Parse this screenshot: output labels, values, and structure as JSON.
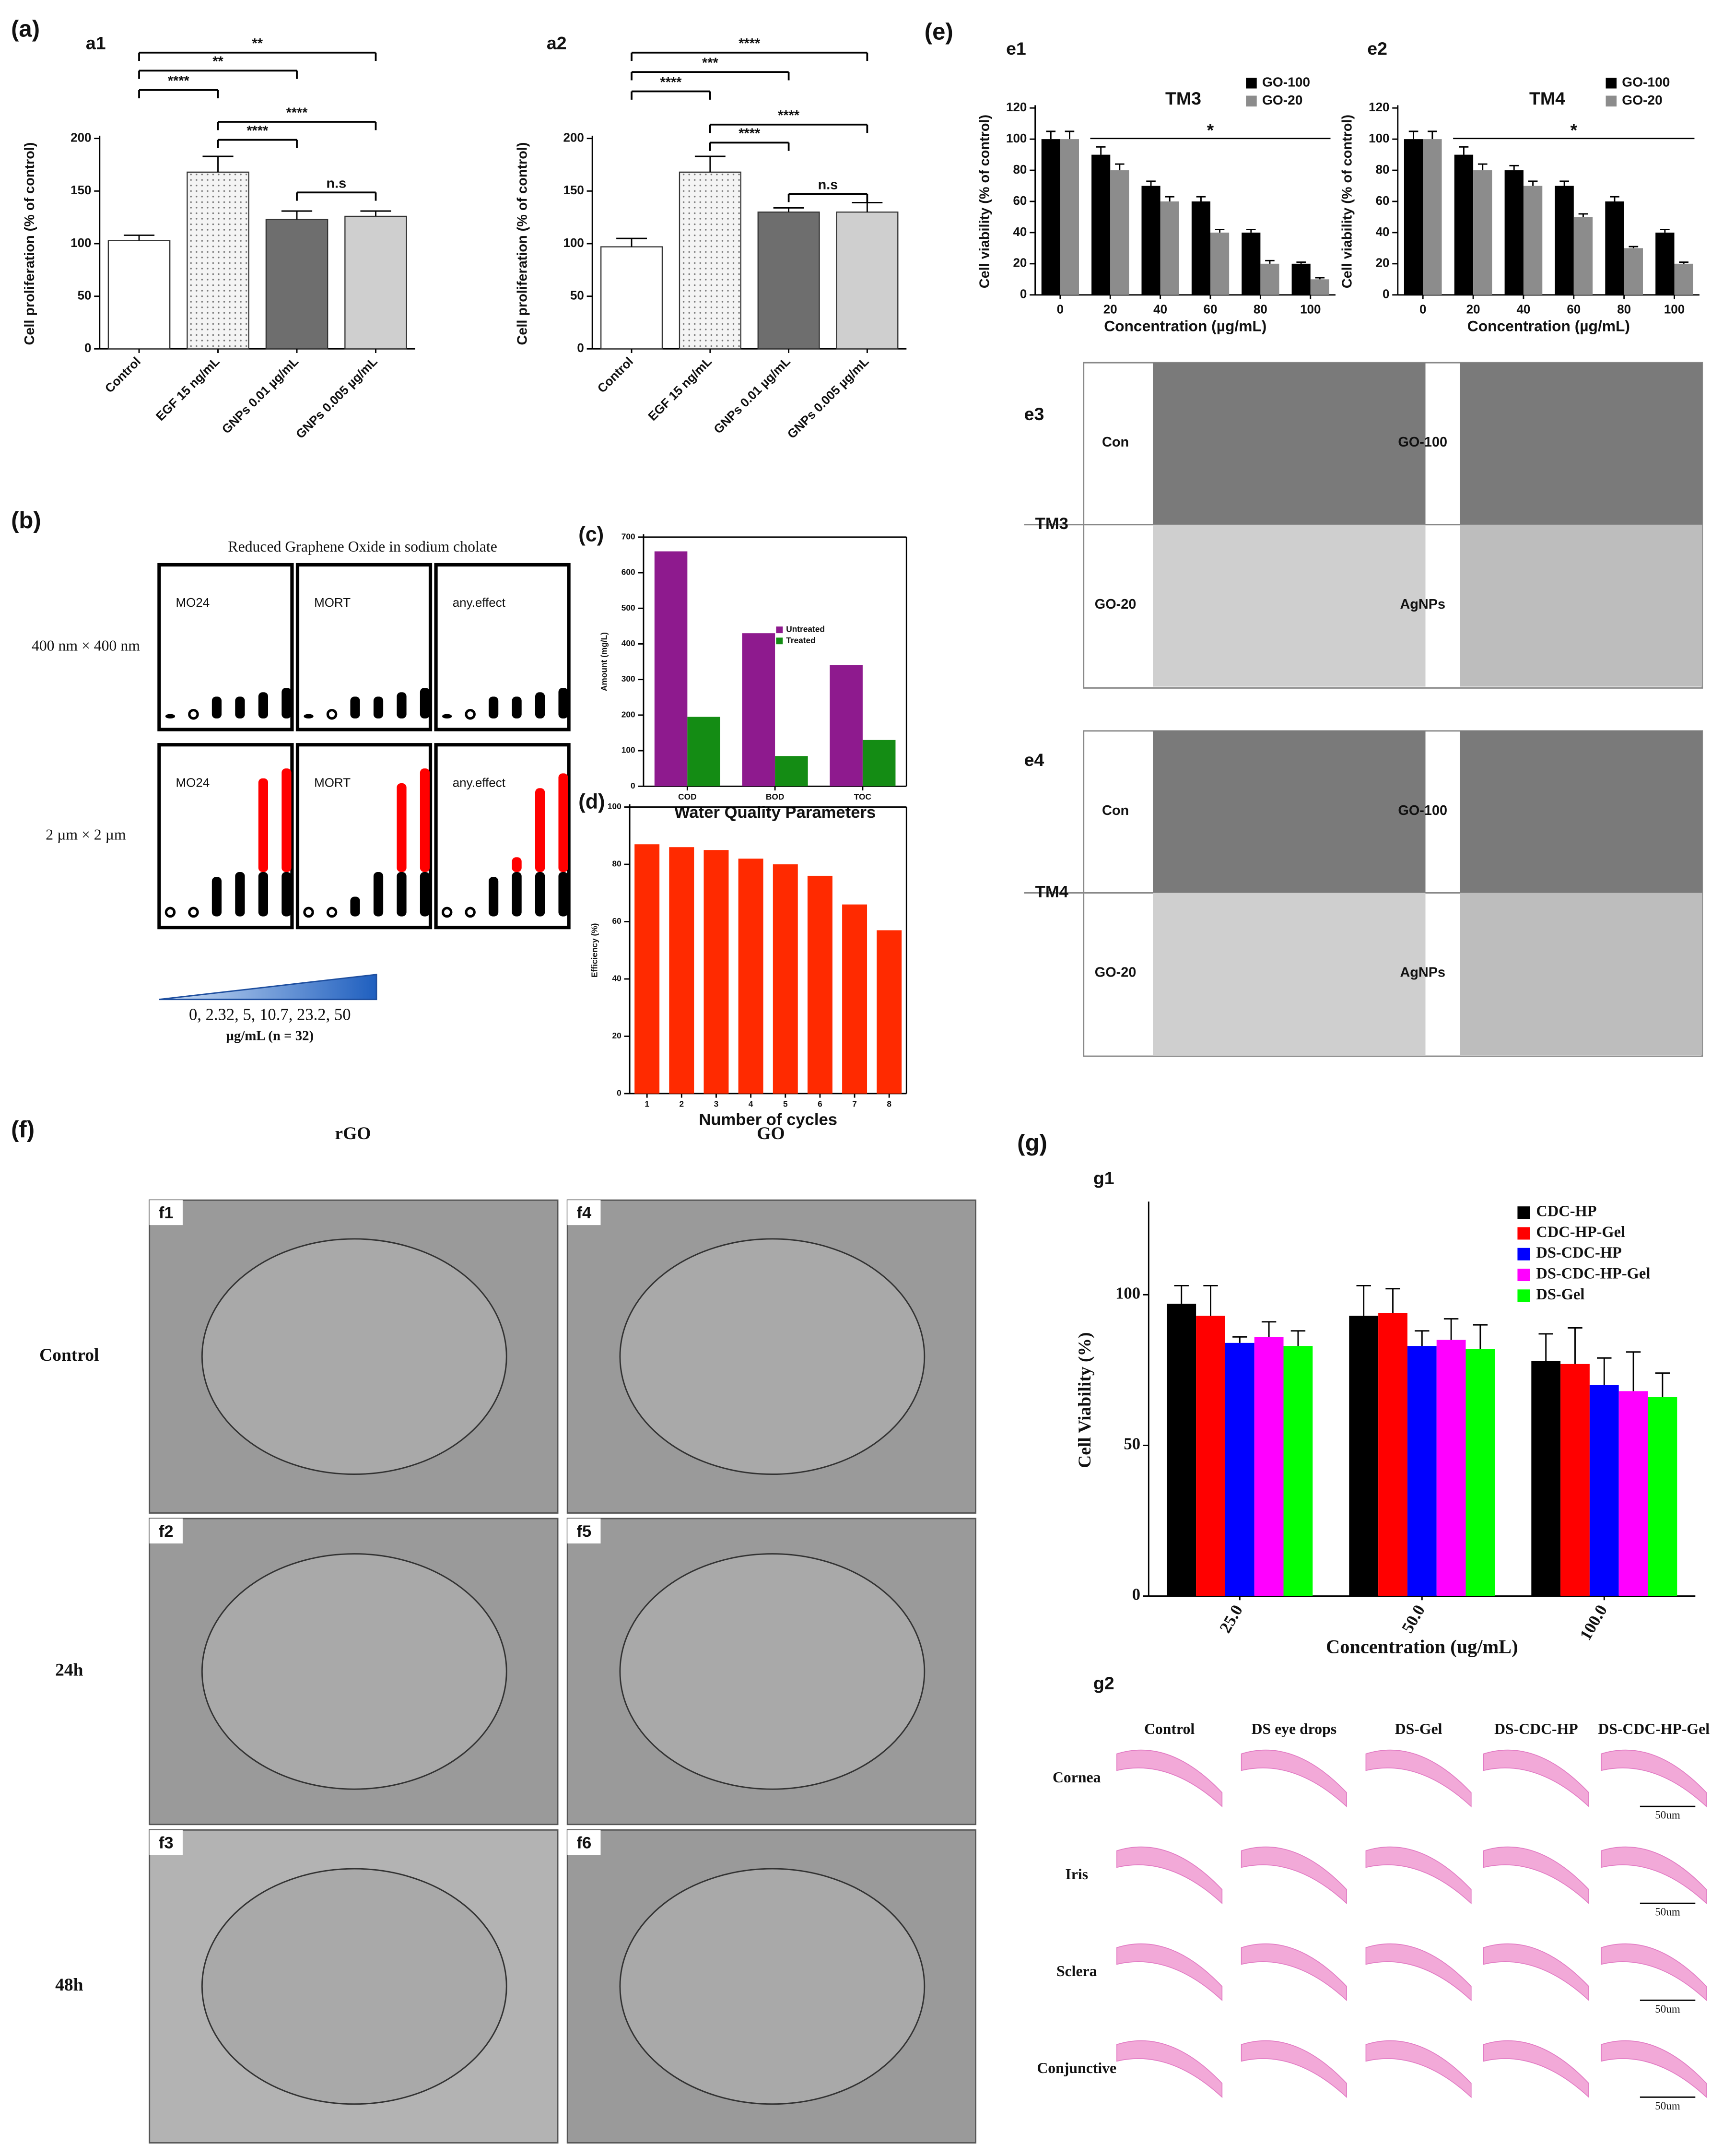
{
  "chart_data": [
    {
      "type": "bar",
      "ylabel": "Cell proliferation (% of control)",
      "categories": [
        "Control",
        "EGF 15 ng/mL",
        "GNPs 0.01 µg/mL",
        "GNPs 0.005 µg/mL"
      ],
      "series": [
        {
          "colors": [
            "#ffffff",
            "#ececec",
            "#6e6e6e",
            "#cfcfcf"
          ],
          "values": [
            103,
            168,
            123,
            126
          ],
          "errors": [
            5,
            15,
            8,
            5
          ]
        }
      ],
      "ylim": [
        0,
        200
      ],
      "yticks": [
        0,
        50,
        100,
        150,
        200
      ],
      "annotations": [
        "**",
        "**",
        "****",
        "****",
        "****",
        "n.s"
      ]
    },
    {
      "type": "bar",
      "ylabel": "Cell proliferation (% of control)",
      "categories": [
        "Control",
        "EGF 15 ng/mL",
        "GNPs 0.01 µg/mL",
        "GNPs 0.005 µg/mL"
      ],
      "series": [
        {
          "colors": [
            "#ffffff",
            "#ececec",
            "#6e6e6e",
            "#cfcfcf"
          ],
          "values": [
            97,
            168,
            130,
            130
          ],
          "errors": [
            8,
            15,
            4,
            9
          ]
        }
      ],
      "ylim": [
        0,
        200
      ],
      "yticks": [
        0,
        50,
        100,
        150,
        200
      ],
      "annotations": [
        "****",
        "***",
        "****",
        "****",
        "****",
        "n.s"
      ]
    },
    {
      "type": "dotbar",
      "title": "Reduced Graphene Oxide in sodium cholate",
      "ylim": [
        0,
        32
      ],
      "rows": [
        {
          "label": "400 nm × 400 nm",
          "panels": [
            {
              "title": "MO24",
              "series": [
                {
                  "color": "#000000",
                  "values": [
                    1,
                    0,
                    5,
                    5,
                    6,
                    7
                  ]
                }
              ]
            },
            {
              "title": "MORT",
              "series": [
                {
                  "color": "#000000",
                  "values": [
                    1,
                    0,
                    5,
                    5,
                    6,
                    7
                  ]
                }
              ]
            },
            {
              "title": "any.effect",
              "series": [
                {
                  "color": "#000000",
                  "values": [
                    1,
                    0,
                    5,
                    5,
                    6,
                    7
                  ]
                }
              ]
            }
          ]
        },
        {
          "label": "2 µm × 2 µm",
          "panels": [
            {
              "title": "MO24",
              "series": [
                {
                  "color": "#000000",
                  "values": [
                    0,
                    0,
                    8,
                    9,
                    9,
                    9
                  ]
                },
                {
                  "color": "#ff0000",
                  "values": [
                    0,
                    0,
                    0,
                    0,
                    19,
                    21
                  ]
                }
              ]
            },
            {
              "title": "MORT",
              "series": [
                {
                  "color": "#000000",
                  "values": [
                    0,
                    0,
                    4,
                    9,
                    9,
                    9
                  ]
                },
                {
                  "color": "#ff0000",
                  "values": [
                    0,
                    0,
                    0,
                    0,
                    18,
                    21
                  ]
                }
              ]
            },
            {
              "title": "any.effect",
              "series": [
                {
                  "color": "#000000",
                  "values": [
                    0,
                    0,
                    8,
                    9,
                    9,
                    9
                  ]
                },
                {
                  "color": "#ff0000",
                  "values": [
                    0,
                    0,
                    0,
                    3,
                    17,
                    20
                  ]
                }
              ]
            }
          ]
        }
      ],
      "doses": "0, 2.32, 5, 10.7, 23.2, 50",
      "dose_unit": "µg/mL (n = 32)"
    },
    {
      "type": "bar",
      "ylabel": "Amount (mg/L)",
      "xlabel": "Water Quality Parameters",
      "categories": [
        "COD",
        "BOD",
        "TOC"
      ],
      "series": [
        {
          "name": "Untreated",
          "color": "#8e1a8e",
          "values": [
            660,
            430,
            340
          ]
        },
        {
          "name": "Treated",
          "color": "#148c14",
          "values": [
            195,
            85,
            130
          ]
        }
      ],
      "ylim": [
        0,
        700
      ],
      "yticks": [
        0,
        100,
        200,
        300,
        400,
        500,
        600,
        700
      ]
    },
    {
      "type": "bar",
      "ylabel": "Efficiency (%)",
      "xlabel": "Number of cycles",
      "categories": [
        "1",
        "2",
        "3",
        "4",
        "5",
        "6",
        "7",
        "8"
      ],
      "series": [
        {
          "color": "#ff2a00",
          "values": [
            87,
            86,
            85,
            82,
            80,
            76,
            66,
            57
          ]
        }
      ],
      "ylim": [
        0,
        100
      ],
      "yticks": [
        0,
        20,
        40,
        60,
        80,
        100
      ]
    },
    {
      "type": "bar",
      "title": "TM3",
      "ylabel": "Cell viability (% of control)",
      "xlabel": "Concentration (µg/mL)",
      "categories": [
        "0",
        "20",
        "40",
        "60",
        "80",
        "100"
      ],
      "series": [
        {
          "name": "GO-100",
          "color": "#000000",
          "values": [
            100,
            90,
            70,
            60,
            40,
            20
          ],
          "errors": [
            5,
            5,
            3,
            3,
            2,
            1
          ]
        },
        {
          "name": "GO-20",
          "color": "#8c8c8c",
          "values": [
            100,
            80,
            60,
            40,
            20,
            10
          ],
          "errors": [
            5,
            4,
            3,
            2,
            2,
            1
          ]
        }
      ],
      "ylim": [
        0,
        120
      ],
      "yticks": [
        0,
        20,
        40,
        60,
        80,
        100,
        120
      ],
      "annotations": [
        "*"
      ]
    },
    {
      "type": "bar",
      "title": "TM4",
      "ylabel": "Cell viability (% of control)",
      "xlabel": "Concentration (µg/mL)",
      "categories": [
        "0",
        "20",
        "40",
        "60",
        "80",
        "100"
      ],
      "series": [
        {
          "name": "GO-100",
          "color": "#000000",
          "values": [
            100,
            90,
            80,
            70,
            60,
            40
          ],
          "errors": [
            5,
            5,
            3,
            3,
            3,
            2
          ]
        },
        {
          "name": "GO-20",
          "color": "#8c8c8c",
          "values": [
            100,
            80,
            70,
            50,
            30,
            20
          ],
          "errors": [
            5,
            4,
            3,
            2,
            1,
            1
          ]
        }
      ],
      "ylim": [
        0,
        120
      ],
      "yticks": [
        0,
        20,
        40,
        60,
        80,
        100,
        120
      ],
      "annotations": [
        "*"
      ]
    },
    {
      "type": "bar",
      "ylabel": "Cell Viability (%)",
      "xlabel": "Concentration (ug/mL)",
      "categories": [
        "25.0",
        "50.0",
        "100.0"
      ],
      "series": [
        {
          "name": "CDC-HP",
          "color": "#000000",
          "values": [
            97,
            93,
            78
          ],
          "errors": [
            6,
            10,
            9
          ]
        },
        {
          "name": "CDC-HP-Gel",
          "color": "#ff0000",
          "values": [
            93,
            94,
            77
          ],
          "errors": [
            10,
            8,
            12
          ]
        },
        {
          "name": "DS-CDC-HP",
          "color": "#0000ff",
          "values": [
            84,
            83,
            70
          ],
          "errors": [
            2,
            5,
            9
          ]
        },
        {
          "name": "DS-CDC-HP-Gel",
          "color": "#ff00ff",
          "values": [
            86,
            85,
            68
          ],
          "errors": [
            5,
            7,
            13
          ]
        },
        {
          "name": "DS-Gel",
          "color": "#00ff00",
          "values": [
            83,
            82,
            66
          ],
          "errors": [
            5,
            8,
            8
          ]
        }
      ],
      "ylim": [
        0,
        130
      ],
      "yticks": [
        0,
        50,
        100
      ]
    }
  ],
  "figure": {
    "panel_labels": [
      "(a)",
      "a1",
      "a2",
      "(b)",
      "(c)",
      "(d)",
      "(e)",
      "e1",
      "e2",
      "e3",
      "e4",
      "(f)",
      "(g)",
      "g1",
      "g2"
    ],
    "e3": {
      "label": "TM3",
      "cells": [
        "Con",
        "GO-100",
        "GO-20",
        "AgNPs"
      ]
    },
    "e4": {
      "label": "TM4",
      "cells": [
        "Con",
        "GO-100",
        "GO-20",
        "AgNPs"
      ]
    },
    "f": {
      "columns": [
        "rGO",
        "GO"
      ],
      "rows": [
        "Control",
        "24h",
        "48h"
      ],
      "panels": [
        "f1",
        "f2",
        "f3",
        "f4",
        "f5",
        "f6"
      ]
    },
    "g2": {
      "columns": [
        "Control",
        "DS eye drops",
        "DS-Gel",
        "DS-CDC-HP",
        "DS-CDC-HP-Gel"
      ],
      "rows": [
        "Cornea",
        "Iris",
        "Sclera",
        "Conjunctive"
      ],
      "scale": "50um"
    }
  }
}
